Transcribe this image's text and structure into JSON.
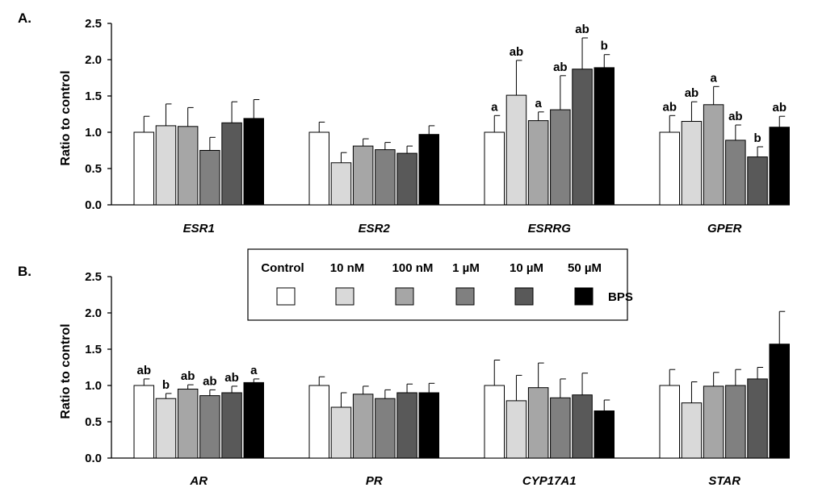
{
  "figure": {
    "panel_a_label": "A.",
    "panel_b_label": "B."
  },
  "legend": {
    "items": [
      {
        "label": "Control",
        "color": "#ffffff"
      },
      {
        "label": "10 nM",
        "color": "#d9d9d9"
      },
      {
        "label": "100 nM",
        "color": "#a6a6a6"
      },
      {
        "label": "1 µM",
        "color": "#808080"
      },
      {
        "label": "10 µM",
        "color": "#595959"
      },
      {
        "label": "50 µM",
        "color": "#000000"
      }
    ],
    "suffix": "BPS"
  },
  "chart_data": [
    {
      "type": "bar",
      "panel": "A.",
      "ylabel": "Ratio to control",
      "ylim": [
        0,
        2.5
      ],
      "yticks": [
        "0.0",
        "0.5",
        "1.0",
        "1.5",
        "2.0",
        "2.5"
      ],
      "series_names": [
        "Control",
        "10 nM",
        "100 nM",
        "1 µM",
        "10 µM",
        "50 µM"
      ],
      "groups": [
        {
          "gene": "ESR1",
          "values": [
            1.0,
            1.09,
            1.08,
            0.75,
            1.13,
            1.19
          ],
          "errors": [
            0.22,
            0.3,
            0.26,
            0.18,
            0.29,
            0.26
          ],
          "labels": [
            "",
            "",
            "",
            "",
            "",
            ""
          ]
        },
        {
          "gene": "ESR2",
          "values": [
            1.0,
            0.58,
            0.81,
            0.76,
            0.71,
            0.97
          ],
          "errors": [
            0.14,
            0.14,
            0.1,
            0.1,
            0.1,
            0.12
          ],
          "labels": [
            "",
            "",
            "",
            "",
            "",
            ""
          ]
        },
        {
          "gene": "ESRRG",
          "values": [
            1.0,
            1.51,
            1.16,
            1.31,
            1.87,
            1.89
          ],
          "errors": [
            0.23,
            0.48,
            0.12,
            0.47,
            0.43,
            0.18
          ],
          "labels": [
            "a",
            "ab",
            "a",
            "ab",
            "ab",
            "b"
          ]
        },
        {
          "gene": "GPER",
          "values": [
            1.0,
            1.15,
            1.38,
            0.89,
            0.66,
            1.07
          ],
          "errors": [
            0.23,
            0.27,
            0.25,
            0.21,
            0.14,
            0.15
          ],
          "labels": [
            "ab",
            "ab",
            "a",
            "ab",
            "b",
            "ab"
          ]
        }
      ]
    },
    {
      "type": "bar",
      "panel": "B.",
      "ylabel": "Ratio to control",
      "ylim": [
        0,
        2.5
      ],
      "yticks": [
        "0.0",
        "0.5",
        "1.0",
        "1.5",
        "2.0",
        "2.5"
      ],
      "series_names": [
        "Control",
        "10 nM",
        "100 nM",
        "1 µM",
        "10 µM",
        "50 µM"
      ],
      "groups": [
        {
          "gene": "AR",
          "values": [
            1.0,
            0.82,
            0.95,
            0.86,
            0.9,
            1.04
          ],
          "errors": [
            0.09,
            0.07,
            0.06,
            0.08,
            0.09,
            0.05
          ],
          "labels": [
            "ab",
            "b",
            "ab",
            "ab",
            "ab",
            "a"
          ]
        },
        {
          "gene": "PR",
          "values": [
            1.0,
            0.7,
            0.88,
            0.82,
            0.9,
            0.9
          ],
          "errors": [
            0.12,
            0.2,
            0.11,
            0.12,
            0.12,
            0.13
          ],
          "labels": [
            "",
            "",
            "",
            "",
            "",
            ""
          ]
        },
        {
          "gene": "CYP17A1",
          "values": [
            1.0,
            0.79,
            0.97,
            0.83,
            0.87,
            0.65
          ],
          "errors": [
            0.35,
            0.35,
            0.34,
            0.26,
            0.3,
            0.15
          ],
          "labels": [
            "",
            "",
            "",
            "",
            "",
            ""
          ]
        },
        {
          "gene": "STAR",
          "values": [
            1.0,
            0.76,
            0.99,
            1.0,
            1.09,
            1.57
          ],
          "errors": [
            0.22,
            0.29,
            0.19,
            0.22,
            0.16,
            0.45
          ],
          "labels": [
            "",
            "",
            "",
            "",
            "",
            ""
          ]
        }
      ]
    }
  ]
}
